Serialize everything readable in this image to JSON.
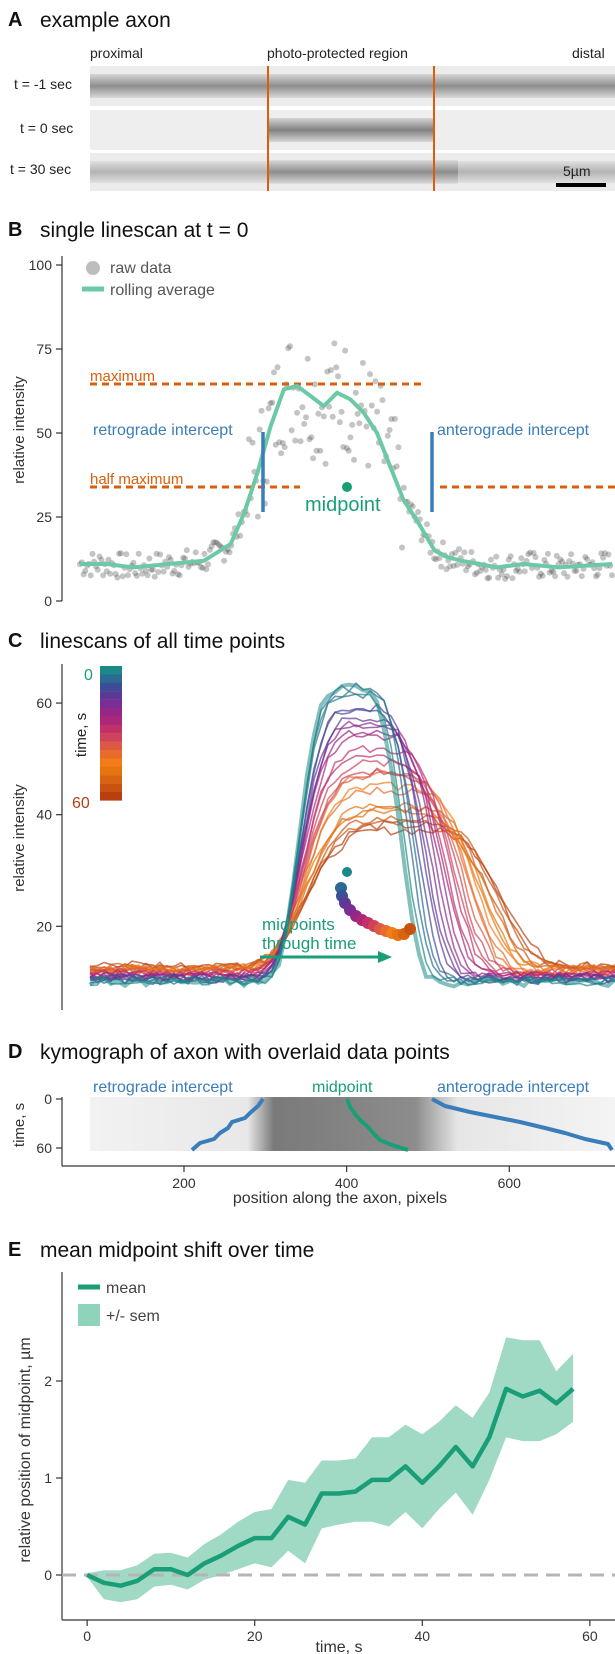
{
  "colors": {
    "orange": "#d95f0e",
    "blue": "#3a7dbb",
    "green": "#1a9e77",
    "lightgreen": "#7fcfb3",
    "gray": "#9a9a9a",
    "axis": "#333333"
  },
  "panelA": {
    "letter": "A",
    "title": "example axon",
    "label_proximal": "proximal",
    "label_region": "photo-protected region",
    "label_distal": "distal",
    "rows": [
      "t = -1 sec",
      "t = 0 sec",
      "t = 30 sec"
    ],
    "scalebar": "5µm"
  },
  "panelB": {
    "letter": "B",
    "title": "single linescan at t = 0",
    "legend_raw": "raw data",
    "legend_avg": "rolling average",
    "label_maximum": "maximum",
    "label_halfmax": "half maximum",
    "label_retro": "retrograde intercept",
    "label_antero": "anterograde intercept",
    "label_midpoint": "midpoint",
    "ylabel": "relative intensity"
  },
  "panelC": {
    "letter": "C",
    "title": "linescans of all time points",
    "ylabel": "relative intensity",
    "colorbar_top": "0",
    "colorbar_bottom": "60",
    "colorbar_label": "time, s",
    "annot": "midpoints",
    "annot2": "through time"
  },
  "panelD": {
    "letter": "D",
    "title": "kymograph of axon with overlaid data points",
    "label_retro": "retrograde intercept",
    "label_mid": "midpoint",
    "label_antero": "anterograde intercept",
    "ylabel": "time, s",
    "xlabel": "position along the axon, pixels"
  },
  "panelE": {
    "letter": "E",
    "title": "mean midpoint shift over time",
    "legend_mean": "mean",
    "legend_sem": "+/- sem",
    "xlabel": "time, s",
    "ylabel": "relative position of midpoint, µm"
  },
  "chart_data": [
    {
      "type": "scatter",
      "panel": "B",
      "ylim": [
        0,
        100
      ],
      "yticks": [
        "0",
        "25",
        "50",
        "75",
        "100"
      ],
      "rolling_average": {
        "x": [
          0,
          30,
          60,
          100,
          140,
          170,
          185,
          200,
          215,
          230,
          245,
          260,
          275,
          290,
          305,
          320,
          335,
          350,
          365,
          380,
          400,
          415,
          430,
          450,
          470,
          500,
          540,
          600
        ],
        "y": [
          11,
          11,
          10,
          11,
          12,
          17,
          26,
          38,
          52,
          63,
          64,
          61,
          58,
          62,
          60,
          56,
          50,
          40,
          30,
          24,
          15,
          13,
          12,
          11,
          10,
          11,
          10,
          11
        ]
      },
      "maximum": 64,
      "half_maximum": 32,
      "retrograde_intercept": 165,
      "anterograde_intercept": 327,
      "midpoint": 246
    },
    {
      "type": "line",
      "panel": "C",
      "yticks": [
        "20",
        "40",
        "60"
      ],
      "ylim": [
        5,
        67
      ],
      "colorbar": [
        "#1b8a86",
        "#2b6b93",
        "#3b4d97",
        "#5b3a96",
        "#7a2d92",
        "#962688",
        "#ad2778",
        "#c1316a",
        "#cf425a",
        "#db5a45",
        "#e86b2c",
        "#f07d17",
        "#e7730f",
        "#d86311",
        "#c95211",
        "#b84010"
      ]
    },
    {
      "type": "line",
      "panel": "D",
      "xticks": [
        "200",
        "400",
        "600"
      ],
      "xtick_values": [
        200,
        400,
        600
      ],
      "xlim": [
        50,
        730
      ],
      "yticks": [
        "0",
        "60"
      ],
      "ylim": [
        0,
        60
      ]
    },
    {
      "type": "line",
      "panel": "E",
      "xticks": [
        "0",
        "20",
        "40",
        "60"
      ],
      "yticks": [
        "0",
        "1",
        "2"
      ],
      "xlim": [
        -3,
        63
      ],
      "ylim": [
        -0.45,
        2.6
      ],
      "x": [
        0,
        2,
        4,
        6,
        8,
        10,
        12,
        14,
        16,
        18,
        20,
        22,
        24,
        26,
        28,
        30,
        32,
        34,
        36,
        38,
        40,
        42,
        44,
        46,
        48,
        50,
        52,
        54,
        56,
        58
      ],
      "mean": [
        0.0,
        -0.08,
        -0.11,
        -0.06,
        0.06,
        0.06,
        0.0,
        0.12,
        0.2,
        0.3,
        0.38,
        0.38,
        0.6,
        0.52,
        0.84,
        0.84,
        0.86,
        0.98,
        0.98,
        1.12,
        0.95,
        1.12,
        1.32,
        1.12,
        1.42,
        1.92,
        1.84,
        1.9,
        1.77,
        1.92
      ],
      "upper": [
        0.02,
        0.05,
        0.05,
        0.1,
        0.22,
        0.23,
        0.18,
        0.32,
        0.42,
        0.55,
        0.65,
        0.68,
        0.98,
        0.95,
        1.18,
        1.18,
        1.2,
        1.42,
        1.42,
        1.55,
        1.45,
        1.58,
        1.75,
        1.62,
        1.88,
        2.45,
        2.42,
        2.42,
        2.1,
        2.28
      ],
      "lower": [
        -0.02,
        -0.25,
        -0.28,
        -0.25,
        -0.12,
        -0.1,
        -0.15,
        -0.05,
        0.0,
        0.06,
        0.12,
        0.08,
        0.25,
        0.12,
        0.48,
        0.52,
        0.55,
        0.55,
        0.5,
        0.65,
        0.48,
        0.68,
        0.85,
        0.62,
        0.98,
        1.42,
        1.38,
        1.38,
        1.45,
        1.58
      ]
    }
  ]
}
